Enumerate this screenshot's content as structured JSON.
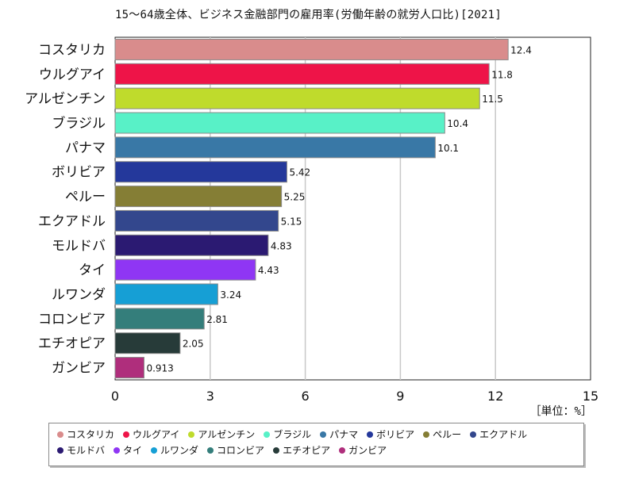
{
  "chart_data": {
    "type": "bar",
    "orientation": "horizontal",
    "title": "15～64歳全体、ビジネス金融部門の雇用率(労働年齢の就労人口比)[2021]",
    "unit_label": "［単位：%］",
    "categories": [
      "コスタリカ",
      "ウルグアイ",
      "アルゼンチン",
      "ブラジル",
      "パナマ",
      "ボリビア",
      "ペルー",
      "エクアドル",
      "モルドバ",
      "タイ",
      "ルワンダ",
      "コロンビア",
      "エチオピア",
      "ガンビア"
    ],
    "values": [
      12.4,
      11.8,
      11.5,
      10.4,
      10.1,
      5.42,
      5.25,
      5.15,
      4.83,
      4.43,
      3.24,
      2.81,
      2.05,
      0.913
    ],
    "value_labels": [
      "12.4",
      "11.8",
      "11.5",
      "10.4",
      "10.1",
      "5.42",
      "5.25",
      "5.15",
      "4.83",
      "4.43",
      "3.24",
      "2.81",
      "2.05",
      "0.913"
    ],
    "colors": [
      "#D98C8C",
      "#EE1448",
      "#BFDB2C",
      "#58F1C7",
      "#3978A6",
      "#24389B",
      "#857E35",
      "#33478D",
      "#2B1A72",
      "#8F36F4",
      "#169FD5",
      "#347E7B",
      "#273B39",
      "#AF2E7C"
    ],
    "xlim": [
      0,
      15
    ],
    "x_ticks": [
      0,
      3,
      6,
      9,
      12,
      15
    ],
    "x_tick_labels": [
      "0",
      "3",
      "6",
      "9",
      "12",
      "15"
    ],
    "grid": true,
    "legend_position": "bottom"
  }
}
